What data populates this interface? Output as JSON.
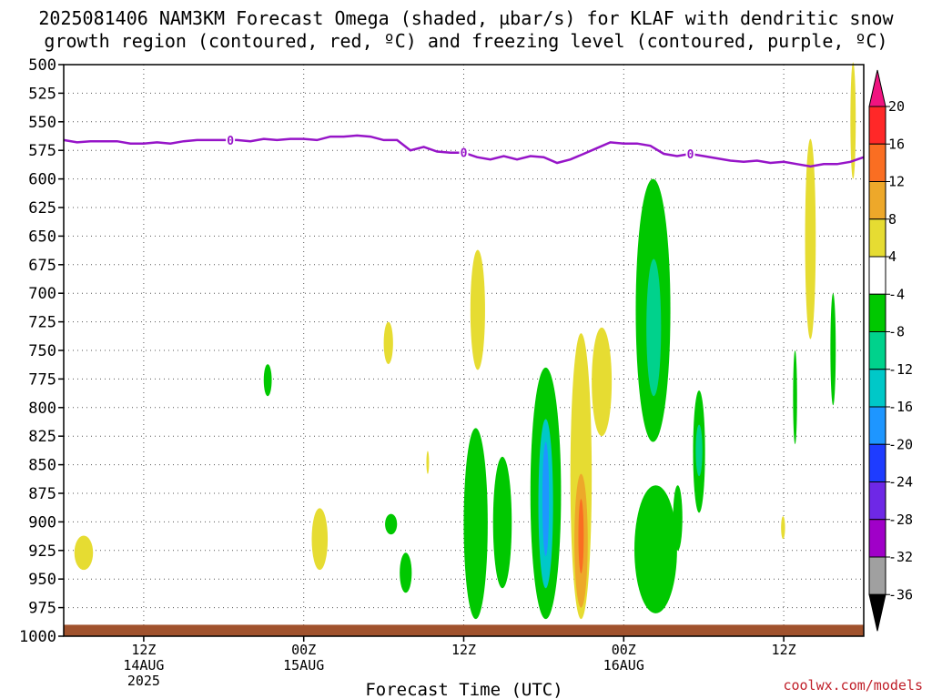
{
  "chart_data": {
    "type": "heatmap",
    "title_line1": "2025081406 NAM3KM Forecast Omega (shaded, µbar/s) for KLAF with dendritic snow",
    "title_line2": "growth region (contoured, red, ºC) and freezing level (contoured, purple, ºC)",
    "xlabel": "Forecast Time (UTC)",
    "credit": "coolwx.com/models",
    "y_axis": {
      "unit": "hPa",
      "range": [
        1000,
        500
      ],
      "ticks": [
        500,
        525,
        550,
        575,
        600,
        625,
        650,
        675,
        700,
        725,
        750,
        775,
        800,
        825,
        850,
        875,
        900,
        925,
        950,
        975,
        1000
      ],
      "ticks_text": [
        "500",
        "525",
        "550",
        "575",
        "600",
        "625",
        "650",
        "675",
        "700",
        "725",
        "750",
        "775",
        "800",
        "825",
        "850",
        "875",
        "900",
        "925",
        "950",
        "975",
        "1000"
      ]
    },
    "x_axis": {
      "range_hours": [
        6,
        66
      ],
      "ticks": [
        {
          "hour": 12,
          "l1": "12Z",
          "l2": "14AUG",
          "l3": "2025"
        },
        {
          "hour": 24,
          "l1": "00Z",
          "l2": "15AUG",
          "l3": ""
        },
        {
          "hour": 36,
          "l1": "12Z",
          "l2": "",
          "l3": ""
        },
        {
          "hour": 48,
          "l1": "00Z",
          "l2": "16AUG",
          "l3": ""
        },
        {
          "hour": 60,
          "l1": "12Z",
          "l2": "",
          "l3": ""
        }
      ]
    },
    "grid": true,
    "colorbar": {
      "labels": [
        "20",
        "16",
        "12",
        "8",
        "4",
        "-4",
        "-8",
        "-12",
        "-16",
        "-20",
        "-24",
        "-28",
        "-32",
        "-36"
      ],
      "bands": [
        {
          "color": "#ff2828",
          "label_after": "16"
        },
        {
          "color": "#fa6e22",
          "label_after": "12"
        },
        {
          "color": "#eda82a",
          "label_after": "8"
        },
        {
          "color": "#e6dc32",
          "label_after": "4"
        },
        {
          "color": "#ffffff",
          "label_after": "-4"
        },
        {
          "color": "#00c800",
          "label_after": "-8"
        },
        {
          "color": "#00d28c",
          "label_after": "-12"
        },
        {
          "color": "#00c8c8",
          "label_after": "-16"
        },
        {
          "color": "#1e96ff",
          "label_after": "-20"
        },
        {
          "color": "#1e3cff",
          "label_after": "-24"
        },
        {
          "color": "#6e28e6",
          "label_after": "-28"
        },
        {
          "color": "#a000c8",
          "label_after": "-32"
        },
        {
          "color": "#a0a0a0",
          "label_after": "-36"
        }
      ],
      "top_arrow_color": "#f01480",
      "bottom_arrow_color": "#000000"
    },
    "freezing_level": {
      "color": "#9614c8",
      "contour_label": "0",
      "label_hours": [
        18.5,
        36.0,
        53.0
      ],
      "points": [
        [
          6,
          566
        ],
        [
          7,
          568
        ],
        [
          8,
          567
        ],
        [
          9,
          567
        ],
        [
          10,
          567
        ],
        [
          11,
          569
        ],
        [
          12,
          569
        ],
        [
          13,
          568
        ],
        [
          14,
          569
        ],
        [
          15,
          567
        ],
        [
          16,
          566
        ],
        [
          17,
          566
        ],
        [
          18,
          566
        ],
        [
          19,
          566
        ],
        [
          20,
          567
        ],
        [
          21,
          565
        ],
        [
          22,
          566
        ],
        [
          23,
          565
        ],
        [
          24,
          565
        ],
        [
          25,
          566
        ],
        [
          26,
          563
        ],
        [
          27,
          563
        ],
        [
          28,
          562
        ],
        [
          29,
          563
        ],
        [
          30,
          566
        ],
        [
          31,
          566
        ],
        [
          32,
          575
        ],
        [
          33,
          572
        ],
        [
          34,
          576
        ],
        [
          35,
          577
        ],
        [
          36,
          577
        ],
        [
          37,
          581
        ],
        [
          38,
          583
        ],
        [
          39,
          580
        ],
        [
          40,
          583
        ],
        [
          41,
          580
        ],
        [
          42,
          581
        ],
        [
          43,
          586
        ],
        [
          44,
          583
        ],
        [
          45,
          578
        ],
        [
          46,
          573
        ],
        [
          47,
          568
        ],
        [
          48,
          569
        ],
        [
          49,
          569
        ],
        [
          50,
          571
        ],
        [
          51,
          578
        ],
        [
          52,
          580
        ],
        [
          53,
          578
        ],
        [
          54,
          580
        ],
        [
          55,
          582
        ],
        [
          56,
          584
        ],
        [
          57,
          585
        ],
        [
          58,
          584
        ],
        [
          59,
          586
        ],
        [
          60,
          585
        ],
        [
          61,
          587
        ],
        [
          62,
          589
        ],
        [
          63,
          587
        ],
        [
          64,
          587
        ],
        [
          65,
          585
        ],
        [
          66,
          581
        ]
      ]
    },
    "terrain": {
      "color": "#a0522d",
      "surface_pressure_hpa": 990
    },
    "omega_regions": [
      {
        "color": "#e6dc32",
        "t0": 6.8,
        "t1": 8.2,
        "p0": 912,
        "p1": 942
      },
      {
        "color": "#00c800",
        "t0": 21.0,
        "t1": 21.6,
        "p0": 762,
        "p1": 790
      },
      {
        "color": "#e6dc32",
        "t0": 24.6,
        "t1": 25.8,
        "p0": 888,
        "p1": 942
      },
      {
        "color": "#e6dc32",
        "t0": 30.0,
        "t1": 30.7,
        "p0": 725,
        "p1": 762
      },
      {
        "color": "#00c800",
        "t0": 30.1,
        "t1": 31.0,
        "p0": 893,
        "p1": 911
      },
      {
        "color": "#00c800",
        "t0": 31.2,
        "t1": 32.1,
        "p0": 927,
        "p1": 962
      },
      {
        "color": "#e6dc32",
        "t0": 33.2,
        "t1": 33.4,
        "p0": 838,
        "p1": 858
      },
      {
        "color": "#e6dc32",
        "t0": 36.5,
        "t1": 37.6,
        "p0": 662,
        "p1": 767
      },
      {
        "color": "#00c800",
        "t0": 36.0,
        "t1": 37.8,
        "p0": 818,
        "p1": 985
      },
      {
        "color": "#00c800",
        "t0": 38.2,
        "t1": 39.6,
        "p0": 843,
        "p1": 958
      },
      {
        "color": "#00c800",
        "t0": 41.0,
        "t1": 43.3,
        "p0": 765,
        "p1": 985
      },
      {
        "color": "#00c8c8",
        "t0": 41.6,
        "t1": 42.7,
        "p0": 810,
        "p1": 958
      },
      {
        "color": "#1e96ff",
        "t0": 41.9,
        "t1": 42.4,
        "p0": 830,
        "p1": 930
      },
      {
        "color": "#e6dc32",
        "t0": 44.0,
        "t1": 45.6,
        "p0": 735,
        "p1": 985
      },
      {
        "color": "#eda82a",
        "t0": 44.3,
        "t1": 45.3,
        "p0": 858,
        "p1": 975
      },
      {
        "color": "#fa6e22",
        "t0": 44.6,
        "t1": 45.0,
        "p0": 880,
        "p1": 945
      },
      {
        "color": "#e6dc32",
        "t0": 45.6,
        "t1": 47.1,
        "p0": 730,
        "p1": 825
      },
      {
        "color": "#00c800",
        "t0": 48.8,
        "t1": 52.0,
        "p0": 868,
        "p1": 980
      },
      {
        "color": "#00c800",
        "t0": 51.7,
        "t1": 52.4,
        "p0": 868,
        "p1": 925
      },
      {
        "color": "#00c800",
        "t0": 48.9,
        "t1": 51.5,
        "p0": 600,
        "p1": 830
      },
      {
        "color": "#00d28c",
        "t0": 49.7,
        "t1": 50.8,
        "p0": 670,
        "p1": 790
      },
      {
        "color": "#00c800",
        "t0": 53.2,
        "t1": 54.1,
        "p0": 785,
        "p1": 892
      },
      {
        "color": "#00d28c",
        "t0": 53.4,
        "t1": 53.9,
        "p0": 815,
        "p1": 860
      },
      {
        "color": "#e6dc32",
        "t0": 59.8,
        "t1": 60.1,
        "p0": 895,
        "p1": 915
      },
      {
        "color": "#00c800",
        "t0": 60.7,
        "t1": 61.0,
        "p0": 750,
        "p1": 832
      },
      {
        "color": "#e6dc32",
        "t0": 61.6,
        "t1": 62.4,
        "p0": 565,
        "p1": 740
      },
      {
        "color": "#00c800",
        "t0": 63.5,
        "t1": 63.9,
        "p0": 700,
        "p1": 798
      },
      {
        "color": "#e6dc32",
        "t0": 65.0,
        "t1": 65.4,
        "p0": 498,
        "p1": 600
      }
    ]
  }
}
